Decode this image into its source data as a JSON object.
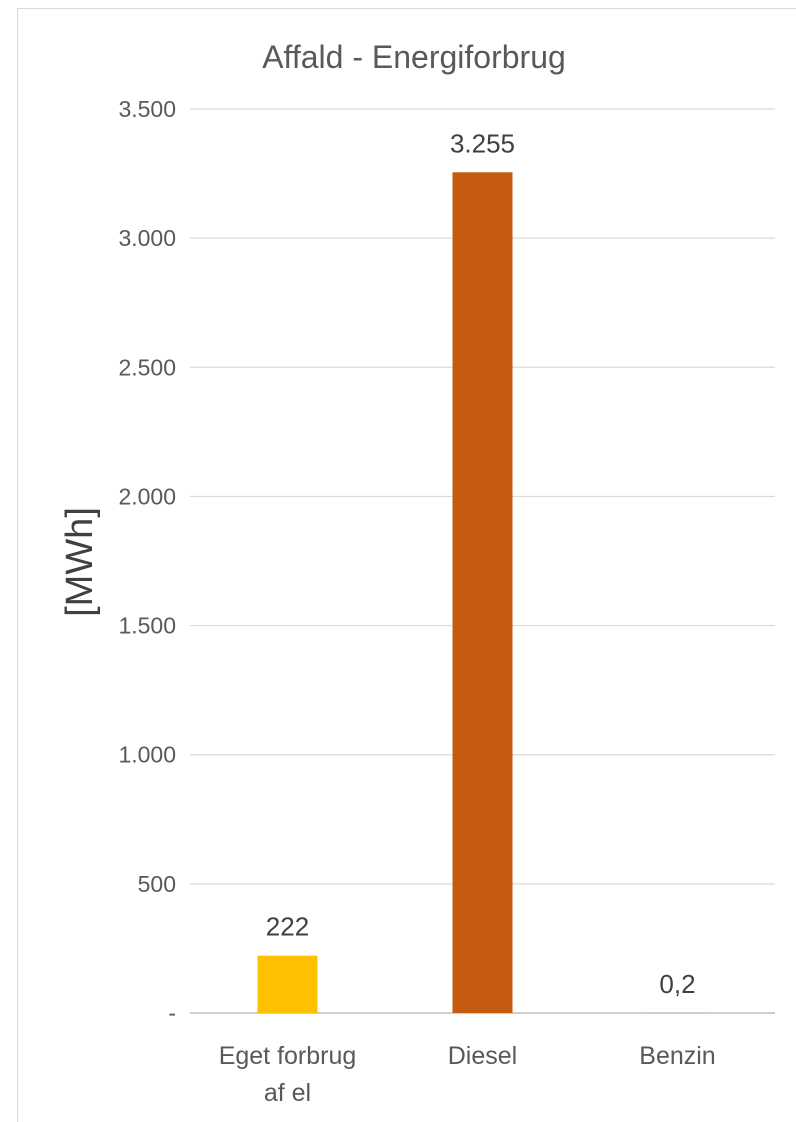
{
  "chart_data": {
    "type": "bar",
    "title": "Affald - Energiforbrug",
    "ylabel": "[MWh]",
    "xlabel": "",
    "categories": [
      [
        "Eget forbrug",
        "af el"
      ],
      [
        "Diesel"
      ],
      [
        "Benzin"
      ]
    ],
    "values": [
      222,
      3255,
      0.2
    ],
    "value_labels": [
      "222",
      "3.255",
      "0,2"
    ],
    "colors": [
      "#FFC000",
      "#C55A11",
      "#A5A5A5"
    ],
    "ylim": [
      0,
      3500
    ],
    "yticks": [
      0,
      500,
      1000,
      1500,
      2000,
      2500,
      3000,
      3500
    ],
    "ytick_labels": [
      "-",
      "500",
      "1.000",
      "1.500",
      "2.000",
      "2.500",
      "3.000",
      "3.500"
    ],
    "grid": true,
    "legend": "none"
  }
}
